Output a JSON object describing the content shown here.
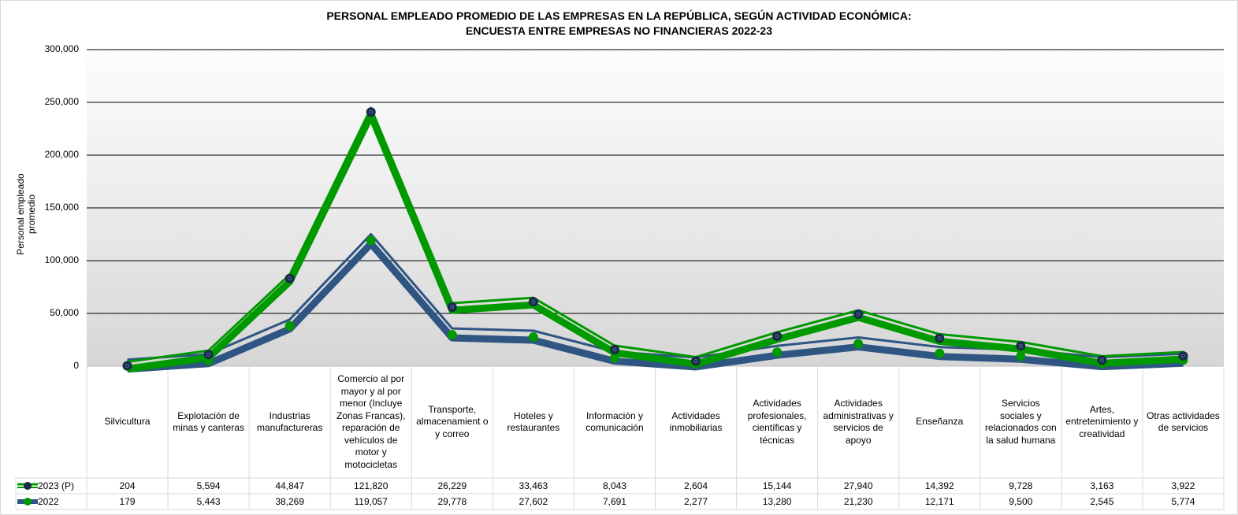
{
  "chart_data": {
    "type": "line",
    "stacked": true,
    "title": "PERSONAL EMPLEADO PROMEDIO DE LAS EMPRESAS EN LA REPÚBLICA, SEGÚN ACTIVIDAD ECONÓMICA:",
    "subtitle": "ENCUESTA ENTRE EMPRESAS NO FINANCIERAS 2022-23",
    "xlabel": "",
    "ylabel": "Personal empleado  promedio",
    "ylim": [
      0,
      300000
    ],
    "yticks": [
      "0",
      "50,000",
      "100,000",
      "150,000",
      "200,000",
      "250,000",
      "300,000"
    ],
    "ytick_values": [
      0,
      50000,
      100000,
      150000,
      200000,
      250000,
      300000
    ],
    "grid": true,
    "legend_placement": "data-table",
    "categories": [
      "Silvicultura",
      "Explotación de minas y canteras",
      "Industrias manufactureras",
      "Comercio al por mayor y al por menor (Incluye Zonas Francas), reparación de vehículos de motor y motocicletas",
      "Transporte, almacenamiento y correo",
      "Hoteles y restaurantes",
      "Información y comunicación",
      "Actividades inmobiliarias",
      "Actividades profesionales, científicas y técnicas",
      "Actividades administrativas y servicios de apoyo",
      "Enseñanza",
      "Servicios sociales y relacionados con la salud humana",
      "Artes, entretenimiento y creatividad",
      "Otras actividades de servicios"
    ],
    "category_labels": [
      "Silvicultura",
      "Explotación de minas y canteras",
      "Industrias manufactureras",
      "Comercio al por mayor y al por menor (Incluye Zonas Francas), reparación de vehículos de motor y motocicletas",
      "Transporte, almacenamient o y correo",
      "Hoteles y restaurantes",
      "Información y comunicación",
      "Actividades inmobiliarias",
      "Actividades profesionales, científicas y técnicas",
      "Actividades administrativas y servicios de apoyo",
      "Enseñanza",
      "Servicios sociales y relacionados con la salud humana",
      "Artes, entretenimiento y creatividad",
      "Otras actividades de servicios"
    ],
    "series": [
      {
        "name": "2022",
        "line_color": "#2f5583",
        "marker_color": "#009900",
        "values": [
          179,
          5443,
          38269,
          119057,
          29778,
          27602,
          7691,
          2277,
          13280,
          21230,
          12171,
          9500,
          2545,
          5774
        ],
        "labels": [
          "179",
          "5,443",
          "38,269",
          "119,057",
          "29,778",
          "27,602",
          "7,691",
          "2,277",
          "13,280",
          "21,230",
          "12,171",
          "9,500",
          "2,545",
          "5,774"
        ]
      },
      {
        "name": "2023 (P)",
        "line_color": "#009900",
        "marker_color": "#1a2b4a",
        "values": [
          204,
          5594,
          44847,
          121820,
          26229,
          33463,
          8043,
          2604,
          15144,
          27940,
          14392,
          9728,
          3163,
          3922
        ],
        "labels": [
          "204",
          "5,594",
          "44,847",
          "121,820",
          "26,229",
          "33,463",
          "8,043",
          "2,604",
          "15,144",
          "27,940",
          "14,392",
          "9,728",
          "3,163",
          "3,922"
        ]
      }
    ]
  }
}
